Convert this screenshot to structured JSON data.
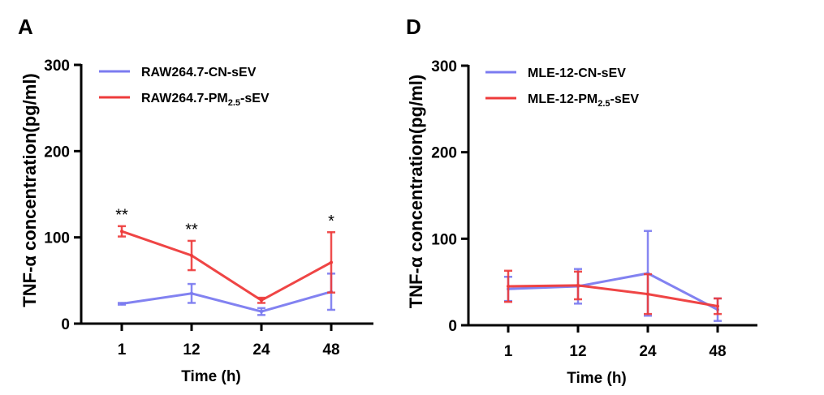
{
  "colors": {
    "cn": "#7b7bf0",
    "pm": "#ee3b3b",
    "axis": "#000000",
    "overlap": "#6a1a8a"
  },
  "chart_data": [
    {
      "panel": "A",
      "type": "line",
      "x_categories": [
        "1",
        "12",
        "24",
        "48"
      ],
      "xlabel": "Time (h)",
      "ylabel": "TNF-α concentration(pg/ml)",
      "ylim": [
        0,
        300
      ],
      "yticks": [
        "0",
        "100",
        "200",
        "300"
      ],
      "legend_position": "top-left",
      "series": [
        {
          "name": "RAW264.7-CN-sEV",
          "name_main": "RAW264.7-CN-sEV",
          "name_sub": "",
          "name_tail": "",
          "color_key": "cn",
          "values": [
            23,
            35,
            14,
            37
          ],
          "errors": [
            1,
            11,
            4,
            21
          ]
        },
        {
          "name": "RAW264.7-PM2.5-sEV",
          "name_main": "RAW264.7-PM",
          "name_sub": "2.5",
          "name_tail": "-sEV",
          "color_key": "pm",
          "values": [
            107,
            79,
            27,
            71
          ],
          "errors": [
            6,
            17,
            3,
            35
          ]
        }
      ],
      "annotations": [
        {
          "x_index": 0,
          "text": "**",
          "y": 120
        },
        {
          "x_index": 1,
          "text": "**",
          "y": 103
        },
        {
          "x_index": 3,
          "text": "*",
          "y": 113
        }
      ]
    },
    {
      "panel": "D",
      "type": "line",
      "x_categories": [
        "1",
        "12",
        "24",
        "48"
      ],
      "xlabel": "Time (h)",
      "ylabel": "TNF-α concentration(pg/ml)",
      "ylim": [
        0,
        300
      ],
      "yticks": [
        "0",
        "100",
        "200",
        "300"
      ],
      "legend_position": "top-left",
      "series": [
        {
          "name": "MLE-12-CN-sEV",
          "name_main": "MLE-12-CN-sEV",
          "name_sub": "",
          "name_tail": "",
          "color_key": "cn",
          "values": [
            42,
            45,
            60,
            18
          ],
          "errors": [
            14,
            20,
            49,
            13
          ]
        },
        {
          "name": "MLE-12-PM2.5-sEV",
          "name_main": "MLE-12-PM",
          "name_sub": "2.5",
          "name_tail": "-sEV",
          "color_key": "pm",
          "values": [
            45,
            46,
            36,
            22
          ],
          "errors": [
            18,
            16,
            23,
            9
          ]
        }
      ],
      "annotations": []
    }
  ]
}
